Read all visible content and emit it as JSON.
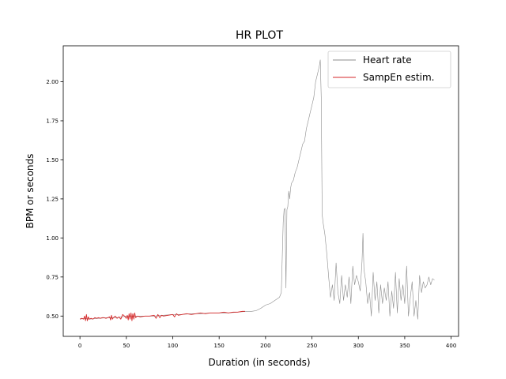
{
  "chart_data": {
    "type": "line",
    "title": "HR PLOT",
    "xlabel": "Duration (in seconds)",
    "ylabel": "BPM or seconds",
    "xlim": [
      -18,
      408
    ],
    "ylim": [
      0.37,
      2.23
    ],
    "xticks": [
      0,
      50,
      100,
      150,
      200,
      250,
      300,
      350,
      400
    ],
    "yticks": [
      0.5,
      0.75,
      1.0,
      1.25,
      1.5,
      1.75,
      2.0
    ],
    "ytick_labels": [
      "0.50",
      "0.75",
      "1.00",
      "1.25",
      "1.50",
      "1.75",
      "2.00"
    ],
    "grid": false,
    "legend_position": "upper right",
    "series": [
      {
        "name": "Heart rate",
        "color": "#8c8c8c",
        "x": [
          0,
          5,
          10,
          20,
          30,
          40,
          50,
          58,
          70,
          80,
          90,
          100,
          110,
          120,
          130,
          140,
          150,
          160,
          170,
          180,
          185,
          190,
          195,
          200,
          205,
          210,
          215,
          217,
          219,
          220,
          221,
          222,
          223,
          224,
          225,
          226,
          227,
          228,
          230,
          232,
          234,
          236,
          238,
          240,
          242,
          244,
          246,
          248,
          250,
          252,
          254,
          256,
          258,
          259,
          260,
          261,
          262,
          264,
          266,
          268,
          270,
          272,
          274,
          276,
          278,
          280,
          282,
          284,
          286,
          288,
          290,
          292,
          294,
          296,
          298,
          300,
          302,
          304,
          305,
          306,
          308,
          310,
          312,
          314,
          316,
          318,
          320,
          322,
          324,
          326,
          328,
          330,
          332,
          334,
          336,
          338,
          340,
          342,
          344,
          346,
          348,
          350,
          352,
          354,
          356,
          358,
          360,
          362,
          364,
          366,
          368,
          370,
          372,
          374,
          376,
          378,
          380,
          382
        ],
        "y": [
          0.48,
          0.485,
          0.48,
          0.485,
          0.49,
          0.49,
          0.5,
          0.5,
          0.5,
          0.5,
          0.505,
          0.51,
          0.51,
          0.515,
          0.515,
          0.52,
          0.52,
          0.52,
          0.525,
          0.53,
          0.53,
          0.535,
          0.55,
          0.57,
          0.58,
          0.6,
          0.62,
          0.65,
          1.1,
          1.18,
          1.19,
          0.68,
          1.18,
          1.2,
          1.3,
          1.25,
          1.32,
          1.35,
          1.37,
          1.42,
          1.45,
          1.5,
          1.55,
          1.6,
          1.62,
          1.7,
          1.75,
          1.8,
          1.85,
          1.9,
          2.0,
          2.05,
          2.1,
          2.14,
          1.9,
          1.15,
          1.1,
          1.02,
          0.9,
          0.75,
          0.62,
          0.7,
          0.6,
          0.84,
          0.65,
          0.58,
          0.76,
          0.6,
          0.7,
          0.62,
          0.75,
          0.58,
          0.82,
          0.7,
          0.76,
          0.72,
          0.66,
          0.85,
          1.03,
          0.8,
          0.72,
          0.58,
          0.65,
          0.5,
          0.78,
          0.6,
          0.72,
          0.52,
          0.7,
          0.58,
          0.68,
          0.6,
          0.72,
          0.5,
          0.66,
          0.55,
          0.78,
          0.52,
          0.74,
          0.6,
          0.7,
          0.58,
          0.82,
          0.5,
          0.62,
          0.72,
          0.5,
          0.6,
          0.48,
          0.76,
          0.65,
          0.72,
          0.68,
          0.7,
          0.75,
          0.7,
          0.74,
          0.73
        ]
      },
      {
        "name": "SampEn estim.",
        "color": "#d62728",
        "x": [
          0,
          2,
          4,
          5,
          6,
          7,
          8,
          9,
          10,
          12,
          14,
          16,
          18,
          20,
          22,
          24,
          26,
          28,
          30,
          32,
          33,
          34,
          35,
          36,
          38,
          40,
          42,
          44,
          46,
          48,
          50,
          51,
          52,
          53,
          54,
          55,
          56,
          57,
          58,
          59,
          60,
          62,
          65,
          70,
          75,
          80,
          82,
          84,
          86,
          88,
          90,
          95,
          100,
          102,
          104,
          106,
          110,
          115,
          120,
          125,
          130,
          135,
          140,
          145,
          150,
          155,
          160,
          165,
          170,
          175,
          178
        ],
        "y": [
          0.48,
          0.485,
          0.48,
          0.5,
          0.47,
          0.51,
          0.47,
          0.495,
          0.48,
          0.485,
          0.48,
          0.49,
          0.485,
          0.49,
          0.485,
          0.49,
          0.49,
          0.485,
          0.49,
          0.495,
          0.475,
          0.505,
          0.48,
          0.49,
          0.5,
          0.485,
          0.495,
          0.48,
          0.51,
          0.5,
          0.485,
          0.505,
          0.475,
          0.515,
          0.48,
          0.52,
          0.47,
          0.515,
          0.48,
          0.52,
          0.49,
          0.5,
          0.495,
          0.5,
          0.5,
          0.505,
          0.485,
          0.51,
          0.49,
          0.505,
          0.5,
          0.505,
          0.51,
          0.495,
          0.515,
          0.505,
          0.51,
          0.515,
          0.51,
          0.515,
          0.52,
          0.515,
          0.52,
          0.52,
          0.52,
          0.525,
          0.52,
          0.525,
          0.525,
          0.53,
          0.53
        ]
      }
    ]
  }
}
